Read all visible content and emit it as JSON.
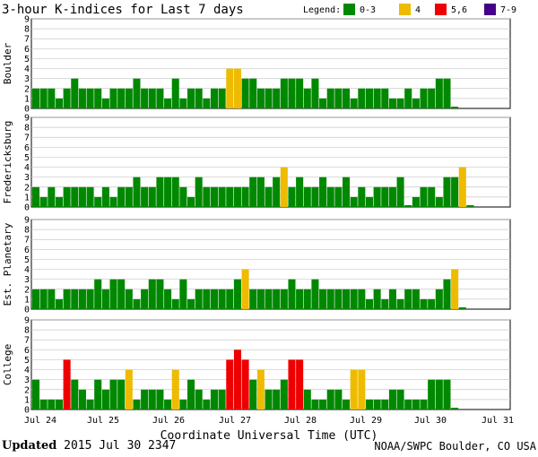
{
  "chart_data": {
    "type": "bar",
    "title": "3-hour K-indices for Last 7 days",
    "xlabel": "Coordinate Universal Time (UTC)",
    "ylim": [
      0,
      9
    ],
    "y_ticks": [
      "0",
      "1",
      "2",
      "3",
      "4",
      "5",
      "6",
      "7",
      "8",
      "9"
    ],
    "day_labels": [
      "Jul 24",
      "Jul 25",
      "Jul 26",
      "Jul 27",
      "Jul 28",
      "Jul 29",
      "Jul 30",
      "Jul 31"
    ],
    "legend": {
      "label": "Legend:",
      "items": [
        {
          "label": "0-3",
          "color": "#008800"
        },
        {
          "label": "4",
          "color": "#eebb00"
        },
        {
          "label": "5,6",
          "color": "#ee0000"
        },
        {
          "label": "7-9",
          "color": "#440088"
        }
      ]
    },
    "grid": true,
    "series": [
      {
        "name": "Boulder",
        "values": [
          2,
          2,
          2,
          1,
          2,
          3,
          2,
          2,
          2,
          1,
          2,
          2,
          2,
          3,
          2,
          2,
          2,
          1,
          3,
          1,
          2,
          2,
          1,
          2,
          2,
          4,
          4,
          3,
          3,
          2,
          2,
          2,
          3,
          3,
          3,
          2,
          3,
          1,
          2,
          2,
          2,
          1,
          2,
          2,
          2,
          2,
          1,
          1,
          2,
          1,
          2,
          2,
          3,
          3,
          0
        ]
      },
      {
        "name": "Fredericksburg",
        "values": [
          2,
          1,
          2,
          1,
          2,
          2,
          2,
          2,
          1,
          2,
          1,
          2,
          2,
          3,
          2,
          2,
          3,
          3,
          3,
          2,
          1,
          3,
          2,
          2,
          2,
          2,
          2,
          2,
          3,
          3,
          2,
          3,
          4,
          2,
          3,
          2,
          2,
          3,
          2,
          2,
          3,
          1,
          2,
          1,
          2,
          2,
          2,
          3,
          0,
          1,
          2,
          2,
          1,
          3,
          3,
          4,
          0
        ]
      },
      {
        "name": "Est. Planetary",
        "values": [
          2,
          2,
          2,
          1,
          2,
          2,
          2,
          2,
          3,
          2,
          3,
          3,
          2,
          1,
          2,
          3,
          3,
          2,
          1,
          3,
          1,
          2,
          2,
          2,
          2,
          2,
          3,
          4,
          2,
          2,
          2,
          2,
          2,
          3,
          2,
          2,
          3,
          2,
          2,
          2,
          2,
          2,
          2,
          1,
          2,
          1,
          2,
          1,
          2,
          2,
          1,
          1,
          2,
          3,
          4,
          0
        ]
      },
      {
        "name": "College",
        "values": [
          3,
          1,
          1,
          1,
          5,
          3,
          2,
          1,
          3,
          2,
          3,
          3,
          4,
          1,
          2,
          2,
          2,
          1,
          4,
          1,
          3,
          2,
          1,
          2,
          2,
          5,
          6,
          5,
          3,
          4,
          2,
          2,
          3,
          5,
          5,
          2,
          1,
          1,
          2,
          2,
          1,
          4,
          4,
          1,
          1,
          1,
          2,
          2,
          1,
          1,
          1,
          3,
          3,
          3,
          0
        ]
      }
    ]
  },
  "footer": {
    "updated_label": "Updated",
    "updated_value": "2015 Jul 30 2347",
    "source": "NOAA/SWPC Boulder, CO USA"
  }
}
